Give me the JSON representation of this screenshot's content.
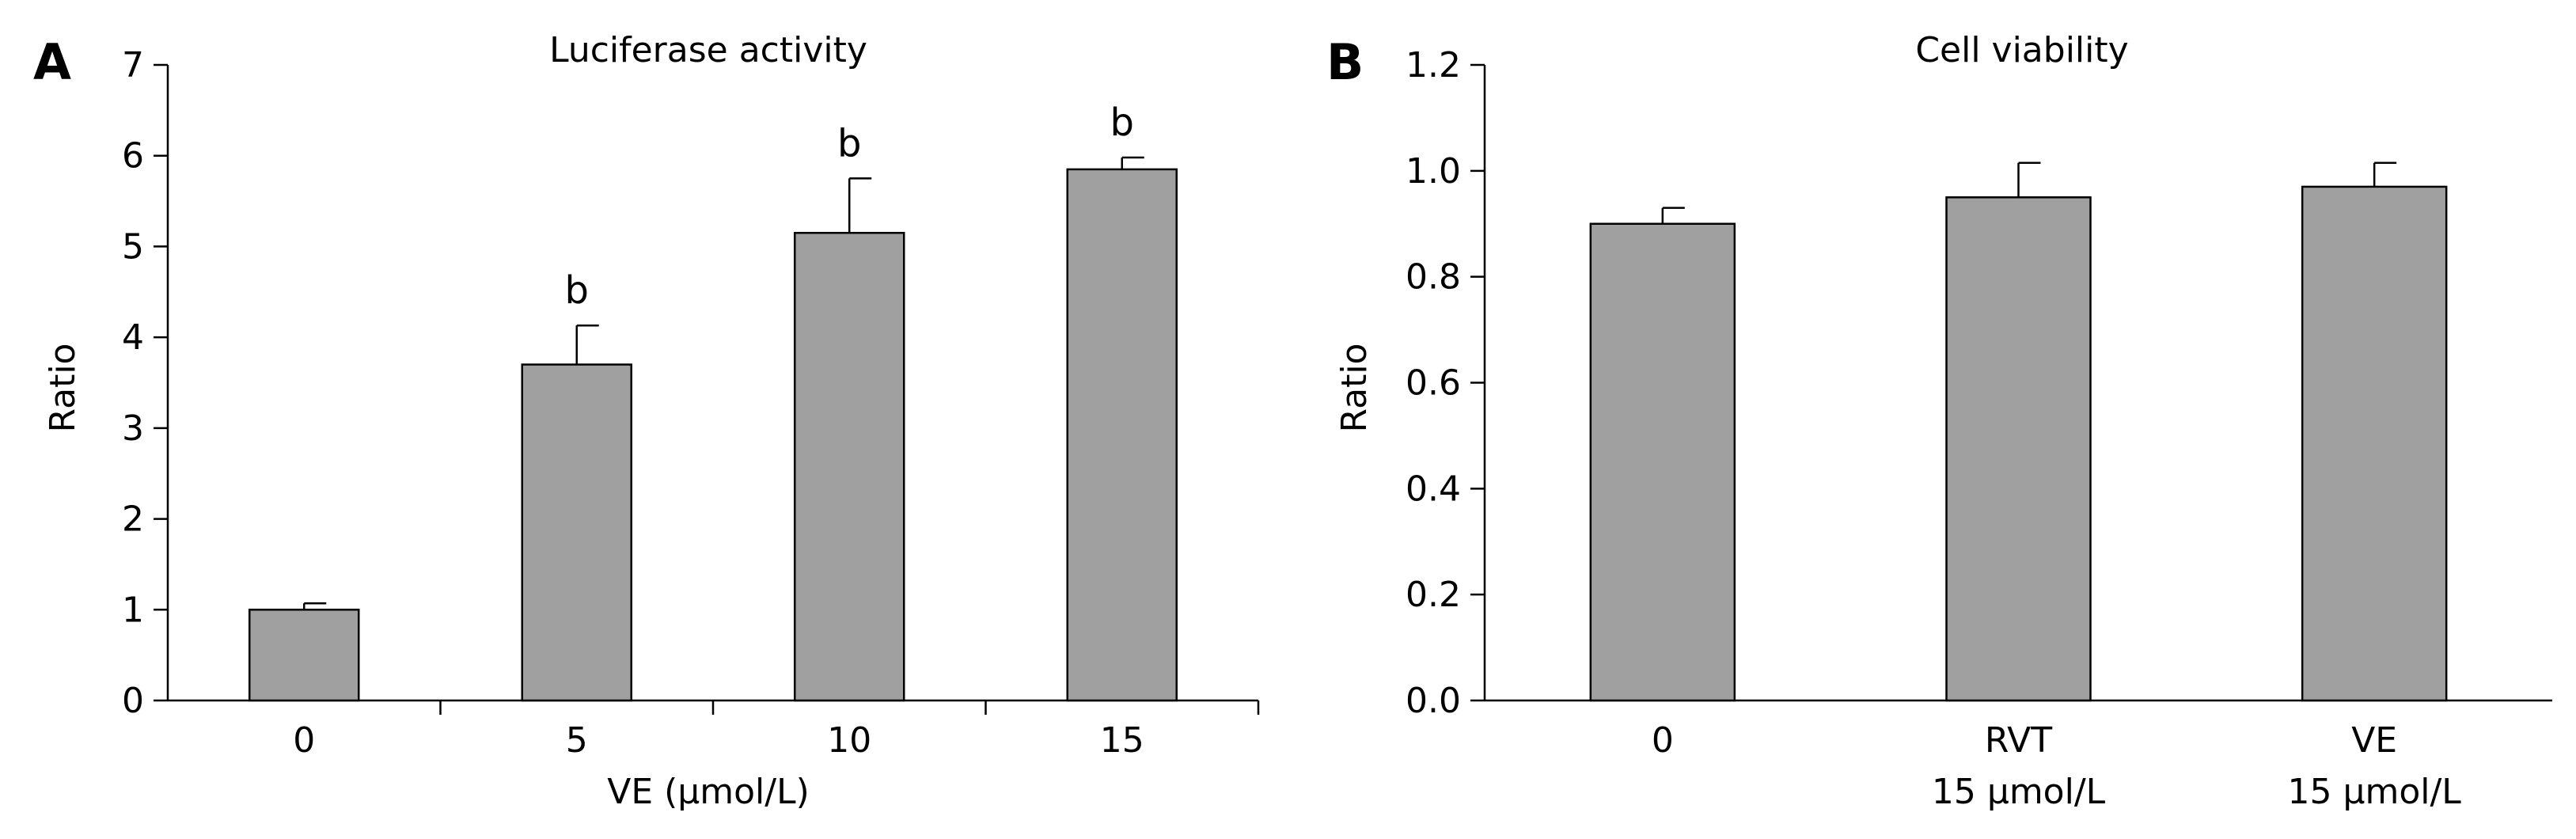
{
  "bar_color": "#a0a0a0",
  "stroke_color": "#000000",
  "chart_data": [
    {
      "type": "bar",
      "panel_label": "A",
      "title": "Luciferase activity",
      "xlabel": "VE (µmol/L)",
      "ylabel": "Ratio",
      "ylim": [
        0,
        7
      ],
      "yticks": [
        0,
        1,
        2,
        3,
        4,
        5,
        6,
        7
      ],
      "ytick_labels": [
        "0",
        "1",
        "2",
        "3",
        "4",
        "5",
        "6",
        "7"
      ],
      "categories": [
        [
          "0"
        ],
        [
          "5"
        ],
        [
          "10"
        ],
        [
          "15"
        ]
      ],
      "values": [
        1.0,
        3.7,
        5.15,
        5.85
      ],
      "errors": [
        0.07,
        0.43,
        0.6,
        0.13
      ],
      "annotations": [
        "",
        "b",
        "b",
        "b"
      ]
    },
    {
      "type": "bar",
      "panel_label": "B",
      "title": "Cell viability",
      "xlabel": "",
      "ylabel": "Ratio",
      "ylim": [
        0,
        1.2
      ],
      "yticks": [
        0,
        0.2,
        0.4,
        0.6,
        0.8,
        1.0,
        1.2
      ],
      "ytick_labels": [
        "0.0",
        "0.2",
        "0.4",
        "0.6",
        "0.8",
        "1.0",
        "1.2"
      ],
      "categories": [
        [
          "0"
        ],
        [
          "RVT",
          "15 µmol/L"
        ],
        [
          "VE",
          "15 µmol/L"
        ]
      ],
      "values": [
        0.9,
        0.95,
        0.97
      ],
      "errors": [
        0.03,
        0.065,
        0.045
      ],
      "annotations": [
        "",
        "",
        ""
      ]
    }
  ]
}
